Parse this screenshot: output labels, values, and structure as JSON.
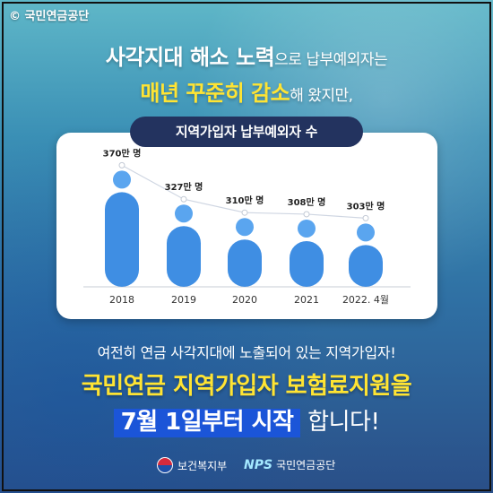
{
  "copyright": "© 국민연금공단",
  "headline": {
    "line1_bold": "사각지대 해소 노력",
    "line1_rest": "으로 납부예외자는",
    "line2_yellow": "매년 꾸준히 감소",
    "line2_rest": "해 왔지만,"
  },
  "chart_data": {
    "type": "bar",
    "title": "지역가입자 납부예외자 수",
    "categories": [
      "2018",
      "2019",
      "2020",
      "2021",
      "2022. 4월"
    ],
    "values": [
      370,
      327,
      310,
      308,
      303
    ],
    "value_labels": [
      "370만 명",
      "327만 명",
      "310만 명",
      "308만 명",
      "303만 명"
    ],
    "unit": "만 명",
    "ylim": [
      0,
      400
    ],
    "grid": false,
    "colors": {
      "bar": "#3f8ee3",
      "bar_top": "#5aa5ef",
      "trend": "#cfd6e2"
    }
  },
  "bottom": {
    "line1": "여전히 연금 사각지대에 노출되어 있는 지역가입자!",
    "line2": "국민연금 지역가입자 보험료지원을",
    "line3_highlight": "7월 1일부터 시작",
    "line3_rest": " 합니다!"
  },
  "footer": {
    "ministry": "보건복지부",
    "nps_logo": "NPS",
    "nps_name": "국민연금공단"
  }
}
